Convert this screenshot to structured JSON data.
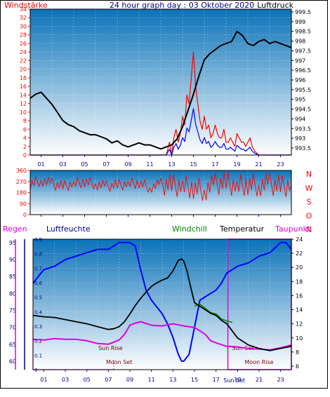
{
  "title": "24 hour graph day : 03 Oktober 2020",
  "colors": {
    "red": "#ff0000",
    "blue": "#0000ff",
    "black": "#000000",
    "green": "#008000",
    "magenta": "#e000e0",
    "darkblue": "#000080",
    "skyTop": "#0a72b8",
    "skyBottom": "#ffffff"
  },
  "time_ticks": [
    "01",
    "03",
    "05",
    "07",
    "09",
    "11",
    "13",
    "15",
    "17",
    "19",
    "21",
    "23"
  ],
  "top": {
    "left_label": "Windstärke",
    "right_label": "Luftdruck",
    "left_ticks": [
      "0",
      "2",
      "4",
      "6",
      "8",
      "10",
      "12",
      "14",
      "16",
      "18",
      "20",
      "22",
      "24",
      "26",
      "28",
      "30",
      "32",
      "34"
    ],
    "right_ticks": [
      "993.5",
      "993",
      "993.5",
      "994",
      "994.5",
      "995",
      "995.5",
      "996",
      "996.5",
      "997",
      "997.5",
      "998",
      "998.5",
      "999",
      "999.5"
    ]
  },
  "mid": {
    "left_ticks": [
      "0",
      "90",
      "180",
      "270",
      "360"
    ],
    "right_letters": [
      "N",
      "W",
      "S",
      "O",
      "N"
    ]
  },
  "bottom": {
    "label_regen": "Regen",
    "label_luftfeuchte": "Luftfeuchte",
    "label_windchill": "Windchill",
    "label_temperatur": "Temperatur",
    "label_taupunkt": "Taupunkt",
    "regen_ticks": [
      "0",
      "0.1",
      "0.2",
      "0.3",
      "0.4",
      "0.5",
      "0.6",
      "0.7",
      "0.8",
      "0.9"
    ],
    "hum_ticks": [
      "60",
      "65",
      "70",
      "75",
      "80",
      "85",
      "90",
      "95"
    ],
    "temp_ticks": [
      "6",
      "8",
      "10",
      "12",
      "14",
      "16",
      "18",
      "20",
      "22",
      "24"
    ],
    "annotations": {
      "sunrise": "Sun Rise",
      "moonset": "Moon Set",
      "sunset": "Sun Set",
      "moonrise": "Moon Rise",
      "sunset2": "Sun Set"
    }
  },
  "chart_data": [
    {
      "type": "line",
      "title": "24 hour graph day : 03 Oktober 2020",
      "xlabel": "",
      "x_range": [
        0,
        24
      ],
      "series": [
        {
          "name": "Luftdruck",
          "axis": "right",
          "ylim": [
            993.5,
            999.5
          ],
          "x": [
            0,
            0.5,
            1,
            1.5,
            2,
            2.5,
            3,
            3.5,
            4,
            4.5,
            5,
            5.5,
            6,
            6.5,
            7,
            7.5,
            8,
            8.5,
            9,
            9.5,
            10,
            10.5,
            11,
            11.5,
            12,
            12.5,
            13,
            13.5,
            14,
            14.5,
            15,
            15.5,
            16,
            16.5,
            17,
            17.5,
            18,
            18.5,
            19,
            19.5,
            20,
            20.5,
            21,
            21.5,
            22,
            22.5,
            23,
            23.5,
            24
          ],
          "values": [
            995.6,
            995.8,
            995.9,
            995.6,
            995.3,
            994.9,
            994.5,
            994.3,
            994.2,
            994.0,
            993.9,
            993.8,
            993.8,
            993.7,
            993.6,
            993.4,
            993.5,
            993.3,
            993.2,
            993.3,
            993.4,
            993.3,
            993.3,
            993.2,
            993.1,
            993.2,
            993.3,
            993.6,
            994.2,
            995.0,
            995.8,
            996.7,
            997.5,
            997.8,
            998.0,
            998.2,
            998.3,
            998.4,
            998.9,
            998.7,
            998.3,
            998.2,
            998.4,
            998.5,
            998.3,
            998.4,
            998.3,
            998.2,
            998.1
          ]
        },
        {
          "name": "Windstärke",
          "axis": "left",
          "ylim": [
            0,
            34
          ],
          "x": [
            0,
            12.5,
            12.8,
            13,
            13.2,
            13.4,
            13.6,
            13.8,
            14,
            14.2,
            14.4,
            14.6,
            14.8,
            15,
            15.2,
            15.4,
            15.6,
            15.8,
            16,
            16.2,
            16.4,
            16.6,
            16.8,
            17,
            17.2,
            17.4,
            17.6,
            17.8,
            18,
            18.2,
            18.4,
            18.6,
            18.8,
            19,
            19.2,
            19.4,
            19.6,
            19.8,
            20,
            20.2,
            20.4,
            20.6,
            21,
            24
          ],
          "values": [
            0,
            0,
            3,
            0,
            4,
            6,
            3,
            5,
            9,
            7,
            14,
            12,
            18,
            24,
            16,
            12,
            8,
            6,
            9,
            6,
            7,
            4,
            5,
            7,
            5,
            4,
            4,
            6,
            3,
            3,
            4,
            3,
            2,
            5,
            4,
            3,
            3,
            2,
            3,
            4,
            2,
            1,
            0,
            0
          ]
        },
        {
          "name": "Windrichtung",
          "axis": "mid",
          "ylim": [
            0,
            360
          ],
          "x": [
            0,
            1,
            2,
            3,
            4,
            5,
            6,
            7,
            8,
            9,
            10,
            11,
            12,
            13,
            14,
            15,
            16,
            17,
            18,
            19,
            20,
            21,
            22,
            23,
            24
          ],
          "values": [
            250,
            280,
            250,
            230,
            250,
            270,
            250,
            230,
            240,
            250,
            260,
            220,
            250,
            240,
            230,
            220,
            200,
            250,
            260,
            230,
            250,
            240,
            250,
            230,
            240
          ]
        }
      ]
    },
    {
      "type": "line",
      "title": "",
      "x_range": [
        0,
        24
      ],
      "series": [
        {
          "name": "Temperatur",
          "axis": "temp",
          "ylim": [
            6,
            24
          ],
          "x": [
            0,
            1,
            2,
            3,
            4,
            5,
            6,
            7,
            7.5,
            8,
            8.5,
            9,
            9.5,
            10,
            10.5,
            11,
            11.5,
            12,
            12.5,
            13,
            13.5,
            13.8,
            14,
            14.3,
            14.6,
            15,
            15.5,
            16,
            16.5,
            17,
            17.5,
            18,
            18.5,
            19,
            19.5,
            20,
            21,
            22,
            23,
            24
          ],
          "values": [
            13.2,
            13.0,
            12.9,
            12.6,
            12.3,
            12.0,
            11.6,
            11.2,
            11.3,
            11.6,
            12.3,
            13.4,
            14.6,
            15.6,
            16.5,
            17.3,
            17.8,
            18.2,
            18.5,
            19.5,
            21.0,
            21.2,
            20.9,
            19.5,
            17.5,
            15.0,
            14.5,
            14.0,
            13.5,
            13.2,
            12.5,
            12.0,
            11.0,
            10.0,
            9.5,
            9.0,
            8.5,
            8.2,
            8.5,
            8.8
          ]
        },
        {
          "name": "Luftfeuchte",
          "axis": "hum",
          "ylim": [
            57.5,
            96
          ],
          "x": [
            0,
            0.5,
            1,
            2,
            3,
            4,
            5,
            6,
            7,
            8,
            8.5,
            9,
            9.5,
            10,
            10.5,
            11,
            11.5,
            12,
            12.5,
            13,
            13.5,
            13.8,
            14,
            14.5,
            15,
            15.5,
            16,
            16.5,
            17,
            17.5,
            18,
            19,
            20,
            21,
            22,
            23,
            23.5,
            24
          ],
          "values": [
            83,
            85,
            87,
            88,
            90,
            91,
            92,
            93,
            93,
            95,
            95,
            95,
            94,
            87,
            81,
            78,
            76,
            74,
            71,
            67,
            62,
            60,
            60,
            62,
            70,
            78,
            79,
            80,
            81,
            83,
            86,
            88,
            89,
            91,
            92,
            95,
            95,
            93
          ]
        },
        {
          "name": "Taupunkt",
          "axis": "temp",
          "ylim": [
            6,
            24
          ],
          "x": [
            0,
            1,
            2,
            3,
            4,
            5,
            6,
            7,
            8,
            8.5,
            9,
            9.5,
            10,
            11,
            12,
            13,
            14,
            15,
            16,
            16.5,
            17,
            18,
            19,
            20,
            21,
            22,
            23,
            24
          ],
          "values": [
            9.8,
            9.7,
            9.9,
            9.8,
            9.8,
            9.6,
            9.2,
            9.1,
            9.7,
            10.5,
            11.8,
            12.1,
            12.3,
            11.8,
            11.7,
            12.0,
            11.7,
            11.5,
            10.5,
            9.6,
            9.3,
            8.8,
            8.7,
            8.5,
            8.4,
            8.3,
            8.6,
            9.0
          ]
        },
        {
          "name": "Windchill",
          "axis": "temp",
          "ylim": [
            6,
            24
          ],
          "x": [
            15,
            15.5,
            16,
            16.5,
            17,
            17.5,
            18,
            18.5
          ],
          "values": [
            14.5,
            14.8,
            14.2,
            13.6,
            13.4,
            12.7,
            12.4,
            12.2
          ]
        },
        {
          "name": "Regen",
          "axis": "regen",
          "ylim": [
            0,
            0.9
          ],
          "x": [
            0,
            24
          ],
          "values": [
            0,
            0
          ]
        }
      ]
    }
  ]
}
